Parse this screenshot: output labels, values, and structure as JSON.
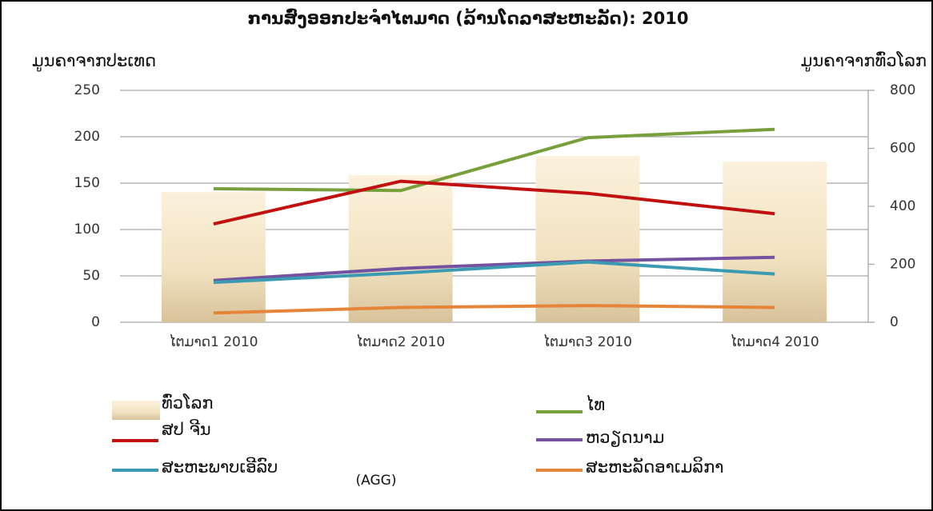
{
  "chart_data": {
    "type": "bar_line",
    "title": "ການສົ່ງອອກປະຈໍາໄຕມາດ (ລ້ານໂດລາສະຫະລັດ): 2010",
    "y_label": "ມູນຄາຈາກປະເທດ",
    "y2_label": "ມູນຄາຈາກທົ່ວໂລກ",
    "annotation": "(AGG)",
    "categories": [
      "ໄຕມາດ1 2010",
      "ໄຕມາດ2 2010",
      "ໄຕມາດ3 2010",
      "ໄຕມາດ4 2010"
    ],
    "ylim": [
      0,
      250
    ],
    "yticks": [
      0,
      50,
      100,
      150,
      200,
      250
    ],
    "y2lim": [
      0,
      800
    ],
    "y2ticks": [
      0,
      200,
      400,
      600,
      800
    ],
    "grid": true,
    "series": [
      {
        "name": "ທົ່ວໂລກ",
        "kind": "bar",
        "axis": "y2",
        "color": "#f5e7c8",
        "values": [
          450,
          508,
          574,
          554
        ]
      },
      {
        "name": "ໄທ",
        "kind": "line",
        "color": "#77a03c",
        "values": [
          144,
          142,
          199,
          208
        ]
      },
      {
        "name": "ສປ ຈີນ",
        "kind": "line",
        "color": "#c0100f",
        "values": [
          106,
          152,
          139,
          117
        ]
      },
      {
        "name": "ຫວຽດນາມ",
        "kind": "line",
        "color": "#7552a0",
        "values": [
          45,
          58,
          66,
          70
        ]
      },
      {
        "name": "ສະຫະພາບເອີລົບ",
        "kind": "line",
        "color": "#3a9bb3",
        "values": [
          43,
          53,
          65,
          52
        ]
      },
      {
        "name": "ສະຫະລັດອາເມລິກາ",
        "kind": "line",
        "color": "#e5853a",
        "values": [
          10,
          16,
          18,
          16
        ]
      }
    ]
  }
}
